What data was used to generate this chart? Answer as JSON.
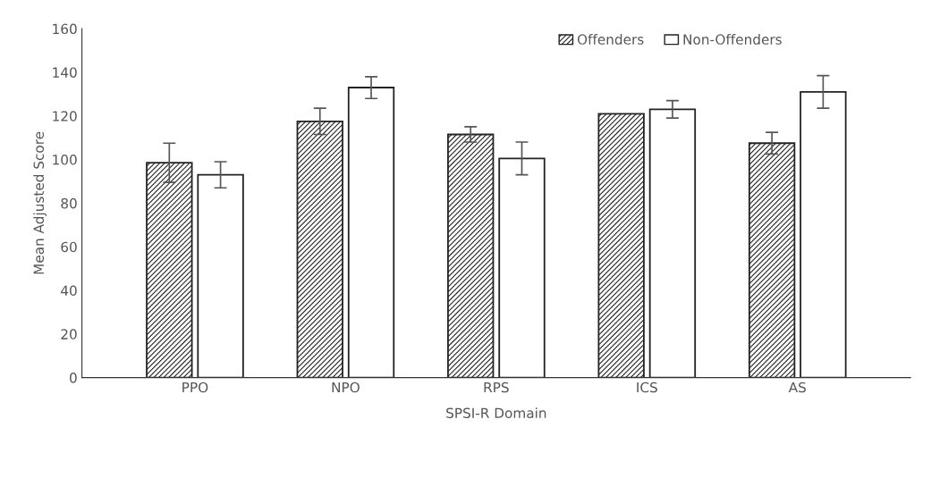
{
  "chart_data": {
    "type": "bar",
    "xlabel": "SPSI-R Domain",
    "ylabel": "Mean Adjusted Score",
    "categories": [
      "PPO",
      "NPO",
      "RPS",
      "ICS",
      "AS"
    ],
    "series": [
      {
        "name": "Offenders",
        "color": "#222222",
        "values": [
          98.5,
          117.5,
          111.5,
          121,
          107.5
        ],
        "errors": [
          9,
          6,
          3.5,
          null,
          5
        ]
      },
      {
        "name": "Non-Offenders",
        "color": "#ffffff",
        "values": [
          93,
          133,
          100.5,
          123,
          131
        ],
        "errors": [
          6,
          5,
          7.5,
          4,
          7.5
        ]
      }
    ],
    "ylim": [
      0,
      160
    ],
    "yticks": [
      0,
      20,
      40,
      60,
      80,
      100,
      120,
      140,
      160
    ],
    "grid": false,
    "legend": "top right"
  }
}
